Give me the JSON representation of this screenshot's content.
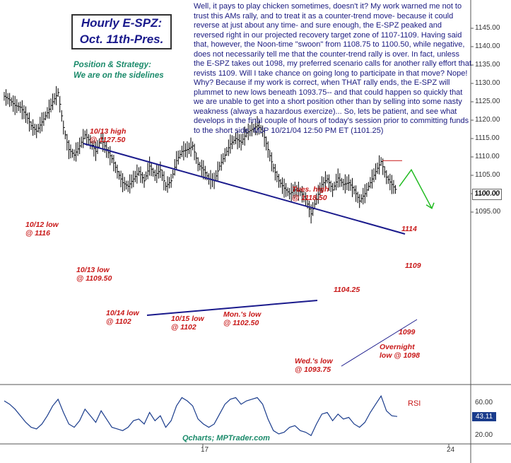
{
  "title": {
    "line1": "Hourly E-SPZ:",
    "line2": "Oct. 11th-Pres."
  },
  "strategy": {
    "heading": "Position & Strategy:",
    "text": "We are on the sidelines"
  },
  "commentary": "Well, it pays to play chicken sometimes, doesn't it? My work warned me not to trust this AMs rally, and to treat it as a counter-trend move- because it could reverse at just about any time- and sure enough, the E-SPZ peaked and reversed right in our projected recovery target zone of 1107-1109. Having said that, however, the Noon-time \"swoon\" from 1108.75 to 1100.50, while negative, does not necessarily tell me that the counter-trend rally is over. In fact, unless the E-SPZ takes out 1098, my preferred scenario calls for another rally effort that revists 1109. Will I take chance on going long to participate in that move? Nope! Why? Because if my work is correct, when THAT rally ends, the E-SPZ will plummet to new lows beneath 1093.75-- and that could happen so quickly that we are unable to get into a short position other than by selling into some nasty weakness (always a hazardous exercize)... So, lets be patient, and see what develops in the final couple of hours of today's session prior to committing funds to the short side. MJP 10/21/04 12:50 PM ET (1101.25)",
  "annotations": {
    "high_1013": "10/13 high\n@ 1127.50",
    "low_1012": "10/12 low\n@ 1116",
    "low_1013": "10/13 low\n@ 1109.50",
    "low_1014": "10/14 low\n@ 1102",
    "low_1015": "10/15  low\n@ 1102",
    "low_mon": "Mon.'s low\n@ 1102.50",
    "high_tues": "Tues. high\n@ 1118.50",
    "level_1114": "1114",
    "level_1104": "1104.25",
    "level_1109": "1109",
    "level_1099": "1099",
    "low_wed": "Wed.'s low\n@ 1093.75",
    "low_overnight": "Overnight\nlow @ 1098"
  },
  "price_axis": {
    "ticks": [
      "1145.00",
      "1140.00",
      "1135.00",
      "1130.00",
      "1125.00",
      "1120.00",
      "1115.00",
      "1110.00",
      "1105.00",
      "1100.00",
      "1095.00"
    ],
    "last_price": "1100.00"
  },
  "rsi_axis": {
    "ticks": [
      "60.00",
      "20.00"
    ],
    "last": "43.11",
    "label": "RSI"
  },
  "date_axis": {
    "ticks": [
      "17",
      "24"
    ]
  },
  "credit": "Qcharts; MPTrader.com",
  "colors": {
    "candles": "#000000",
    "trendline": "#1a1a8c",
    "annotation": "#c81818",
    "projection": "#22bb22",
    "rsi": "#1a3c8c",
    "strategy_text": "#1a8a6a"
  },
  "chart_data": {
    "type": "line",
    "title": "Hourly E-SPZ: Oct. 11th-Pres.",
    "ylim": [
      1091,
      1148
    ],
    "price_path": [
      1126.5,
      1125.5,
      1124,
      1123.5,
      1121.5,
      1118.5,
      1117,
      1119.5,
      1122,
      1125,
      1127.5,
      1118,
      1112,
      1110.5,
      1113,
      1116,
      1114,
      1111.5,
      1115,
      1112,
      1109.5,
      1106,
      1103,
      1102,
      1104,
      1106,
      1103.5,
      1107.5,
      1105,
      1106.5,
      1102,
      1103.5,
      1109,
      1111.5,
      1112,
      1113,
      1108,
      1106.5,
      1104,
      1103.5,
      1107.5,
      1110.5,
      1113.5,
      1115,
      1114,
      1116.5,
      1117.5,
      1118.5,
      1117,
      1112,
      1107,
      1103.5,
      1101.5,
      1100,
      1101,
      1100.5,
      1098.5,
      1094.5,
      1098.5,
      1102.5,
      1104,
      1101,
      1104.25,
      1102.5,
      1103,
      1101,
      1098,
      1100,
      1103,
      1106,
      1108.75,
      1104.5,
      1102.5,
      1100.5
    ],
    "projection_path": [
      1102,
      1106.5,
      1096
    ],
    "levels": {
      "hline_1109": 1109
    },
    "rsi_path": [
      62,
      58,
      52,
      44,
      36,
      30,
      28,
      34,
      44,
      56,
      64,
      48,
      34,
      30,
      38,
      52,
      44,
      36,
      50,
      40,
      30,
      28,
      26,
      30,
      38,
      40,
      34,
      48,
      38,
      44,
      30,
      38,
      56,
      66,
      62,
      56,
      40,
      34,
      30,
      34,
      46,
      58,
      64,
      66,
      58,
      62,
      64,
      66,
      58,
      40,
      26,
      22,
      24,
      30,
      32,
      26,
      24,
      20,
      34,
      46,
      48,
      38,
      46,
      40,
      42,
      34,
      30,
      36,
      48,
      58,
      68,
      50,
      44,
      43.11
    ],
    "rsi_ylim": [
      15,
      75
    ]
  }
}
